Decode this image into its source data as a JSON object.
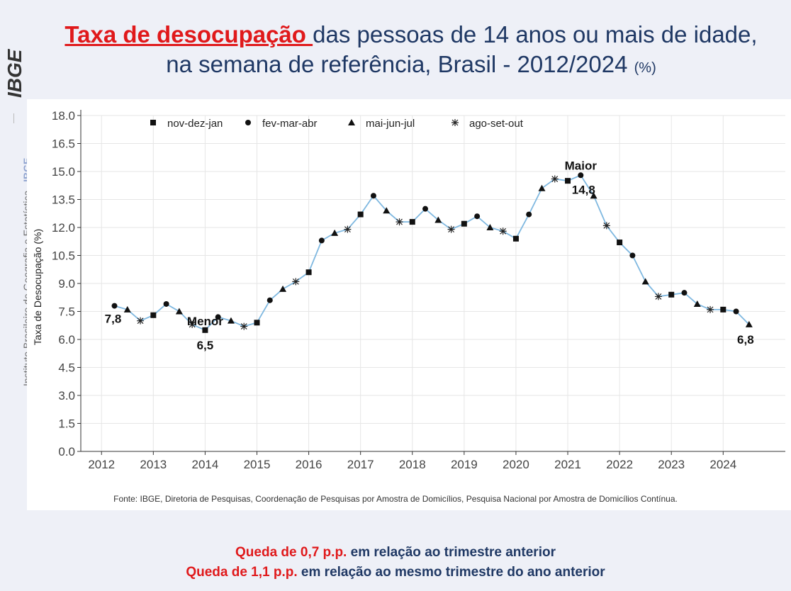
{
  "sidebar": {
    "logo_text": "IBGE",
    "org_name": "Instituto Brasileiro de Geografia e Estatística",
    "org_short": "IBGE"
  },
  "header": {
    "title_highlight": "Taxa de desocupação ",
    "title_rest": "das pessoas de 14 anos ou mais de idade,",
    "title_line2": "na semana de referência, Brasil - 2012/2024",
    "title_unit": "(%)"
  },
  "chart_data": {
    "type": "line",
    "ylabel": "Taxa de Desocupação (%)",
    "xlabel": "",
    "ylim": [
      0,
      18
    ],
    "yticks": [
      "0.0",
      "1.5",
      "3.0",
      "4.5",
      "6.0",
      "7.5",
      "9.0",
      "10.5",
      "12.0",
      "13.5",
      "15.0",
      "16.5",
      "18.0"
    ],
    "xticks": [
      "2012",
      "2013",
      "2014",
      "2015",
      "2016",
      "2017",
      "2018",
      "2019",
      "2020",
      "2021",
      "2022",
      "2023",
      "2024"
    ],
    "grid": true,
    "legend_position": "top-left",
    "line_color": "#7fb8e0",
    "legend": [
      {
        "marker": "square",
        "label": "nov-dez-jan"
      },
      {
        "marker": "circle",
        "label": "fev-mar-abr"
      },
      {
        "marker": "triangle",
        "label": "mai-jun-jul"
      },
      {
        "marker": "asterisk",
        "label": "ago-set-out"
      }
    ],
    "points": [
      {
        "x": 2012.25,
        "y": 7.8,
        "m": "circle"
      },
      {
        "x": 2012.5,
        "y": 7.6,
        "m": "triangle"
      },
      {
        "x": 2012.75,
        "y": 7.0,
        "m": "asterisk"
      },
      {
        "x": 2013.0,
        "y": 7.3,
        "m": "square"
      },
      {
        "x": 2013.25,
        "y": 7.9,
        "m": "circle"
      },
      {
        "x": 2013.5,
        "y": 7.5,
        "m": "triangle"
      },
      {
        "x": 2013.75,
        "y": 6.8,
        "m": "asterisk"
      },
      {
        "x": 2014.0,
        "y": 6.5,
        "m": "square"
      },
      {
        "x": 2014.25,
        "y": 7.2,
        "m": "circle"
      },
      {
        "x": 2014.5,
        "y": 7.0,
        "m": "triangle"
      },
      {
        "x": 2014.75,
        "y": 6.7,
        "m": "asterisk"
      },
      {
        "x": 2015.0,
        "y": 6.9,
        "m": "square"
      },
      {
        "x": 2015.25,
        "y": 8.1,
        "m": "circle"
      },
      {
        "x": 2015.5,
        "y": 8.7,
        "m": "triangle"
      },
      {
        "x": 2015.75,
        "y": 9.1,
        "m": "asterisk"
      },
      {
        "x": 2016.0,
        "y": 9.6,
        "m": "square"
      },
      {
        "x": 2016.25,
        "y": 11.3,
        "m": "circle"
      },
      {
        "x": 2016.5,
        "y": 11.7,
        "m": "triangle"
      },
      {
        "x": 2016.75,
        "y": 11.9,
        "m": "asterisk"
      },
      {
        "x": 2017.0,
        "y": 12.7,
        "m": "square"
      },
      {
        "x": 2017.25,
        "y": 13.7,
        "m": "circle"
      },
      {
        "x": 2017.5,
        "y": 12.9,
        "m": "triangle"
      },
      {
        "x": 2017.75,
        "y": 12.3,
        "m": "asterisk"
      },
      {
        "x": 2018.0,
        "y": 12.3,
        "m": "square"
      },
      {
        "x": 2018.25,
        "y": 13.0,
        "m": "circle"
      },
      {
        "x": 2018.5,
        "y": 12.4,
        "m": "triangle"
      },
      {
        "x": 2018.75,
        "y": 11.9,
        "m": "asterisk"
      },
      {
        "x": 2019.0,
        "y": 12.2,
        "m": "square"
      },
      {
        "x": 2019.25,
        "y": 12.6,
        "m": "circle"
      },
      {
        "x": 2019.5,
        "y": 12.0,
        "m": "triangle"
      },
      {
        "x": 2019.75,
        "y": 11.8,
        "m": "asterisk"
      },
      {
        "x": 2020.0,
        "y": 11.4,
        "m": "square"
      },
      {
        "x": 2020.25,
        "y": 12.7,
        "m": "circle"
      },
      {
        "x": 2020.5,
        "y": 14.1,
        "m": "triangle"
      },
      {
        "x": 2020.75,
        "y": 14.6,
        "m": "asterisk"
      },
      {
        "x": 2021.0,
        "y": 14.5,
        "m": "square"
      },
      {
        "x": 2021.25,
        "y": 14.8,
        "m": "circle"
      },
      {
        "x": 2021.5,
        "y": 13.7,
        "m": "triangle"
      },
      {
        "x": 2021.75,
        "y": 12.1,
        "m": "asterisk"
      },
      {
        "x": 2022.0,
        "y": 11.2,
        "m": "square"
      },
      {
        "x": 2022.25,
        "y": 10.5,
        "m": "circle"
      },
      {
        "x": 2022.5,
        "y": 9.1,
        "m": "triangle"
      },
      {
        "x": 2022.75,
        "y": 8.3,
        "m": "asterisk"
      },
      {
        "x": 2023.0,
        "y": 8.4,
        "m": "square"
      },
      {
        "x": 2023.25,
        "y": 8.5,
        "m": "circle"
      },
      {
        "x": 2023.5,
        "y": 7.9,
        "m": "triangle"
      },
      {
        "x": 2023.75,
        "y": 7.6,
        "m": "asterisk"
      },
      {
        "x": 2024.0,
        "y": 7.6,
        "m": "square"
      },
      {
        "x": 2024.25,
        "y": 7.5,
        "m": "circle"
      },
      {
        "x": 2024.5,
        "y": 6.8,
        "m": "triangle"
      }
    ],
    "annotations": [
      {
        "text": "7,8",
        "x": 2012.25,
        "y": 7.8,
        "bold": true
      },
      {
        "text": "Menor",
        "x": 2014.0,
        "y": 6.5,
        "bold": true
      },
      {
        "text": "6,5",
        "x": 2014.0,
        "y": 6.5,
        "bold": true
      },
      {
        "text": "Maior",
        "x": 2021.25,
        "y": 14.8,
        "bold": true
      },
      {
        "text": "14,8",
        "x": 2021.25,
        "y": 14.8,
        "bold": true
      },
      {
        "text": "6,8",
        "x": 2024.5,
        "y": 6.8,
        "bold": true
      }
    ]
  },
  "source": "Fonte: IBGE, Diretoria de Pesquisas, Coordenação de Pesquisas por Amostra de Domicílios, Pesquisa Nacional por Amostra de Domicílios Contínua.",
  "footer": {
    "line1_red": "Queda de 0,7 p.p.",
    "line1_rest": " em relação ao trimestre anterior",
    "line2_red": "Queda de 1,1 p.p.",
    "line2_rest": " em relação ao mesmo trimestre do ano anterior"
  }
}
